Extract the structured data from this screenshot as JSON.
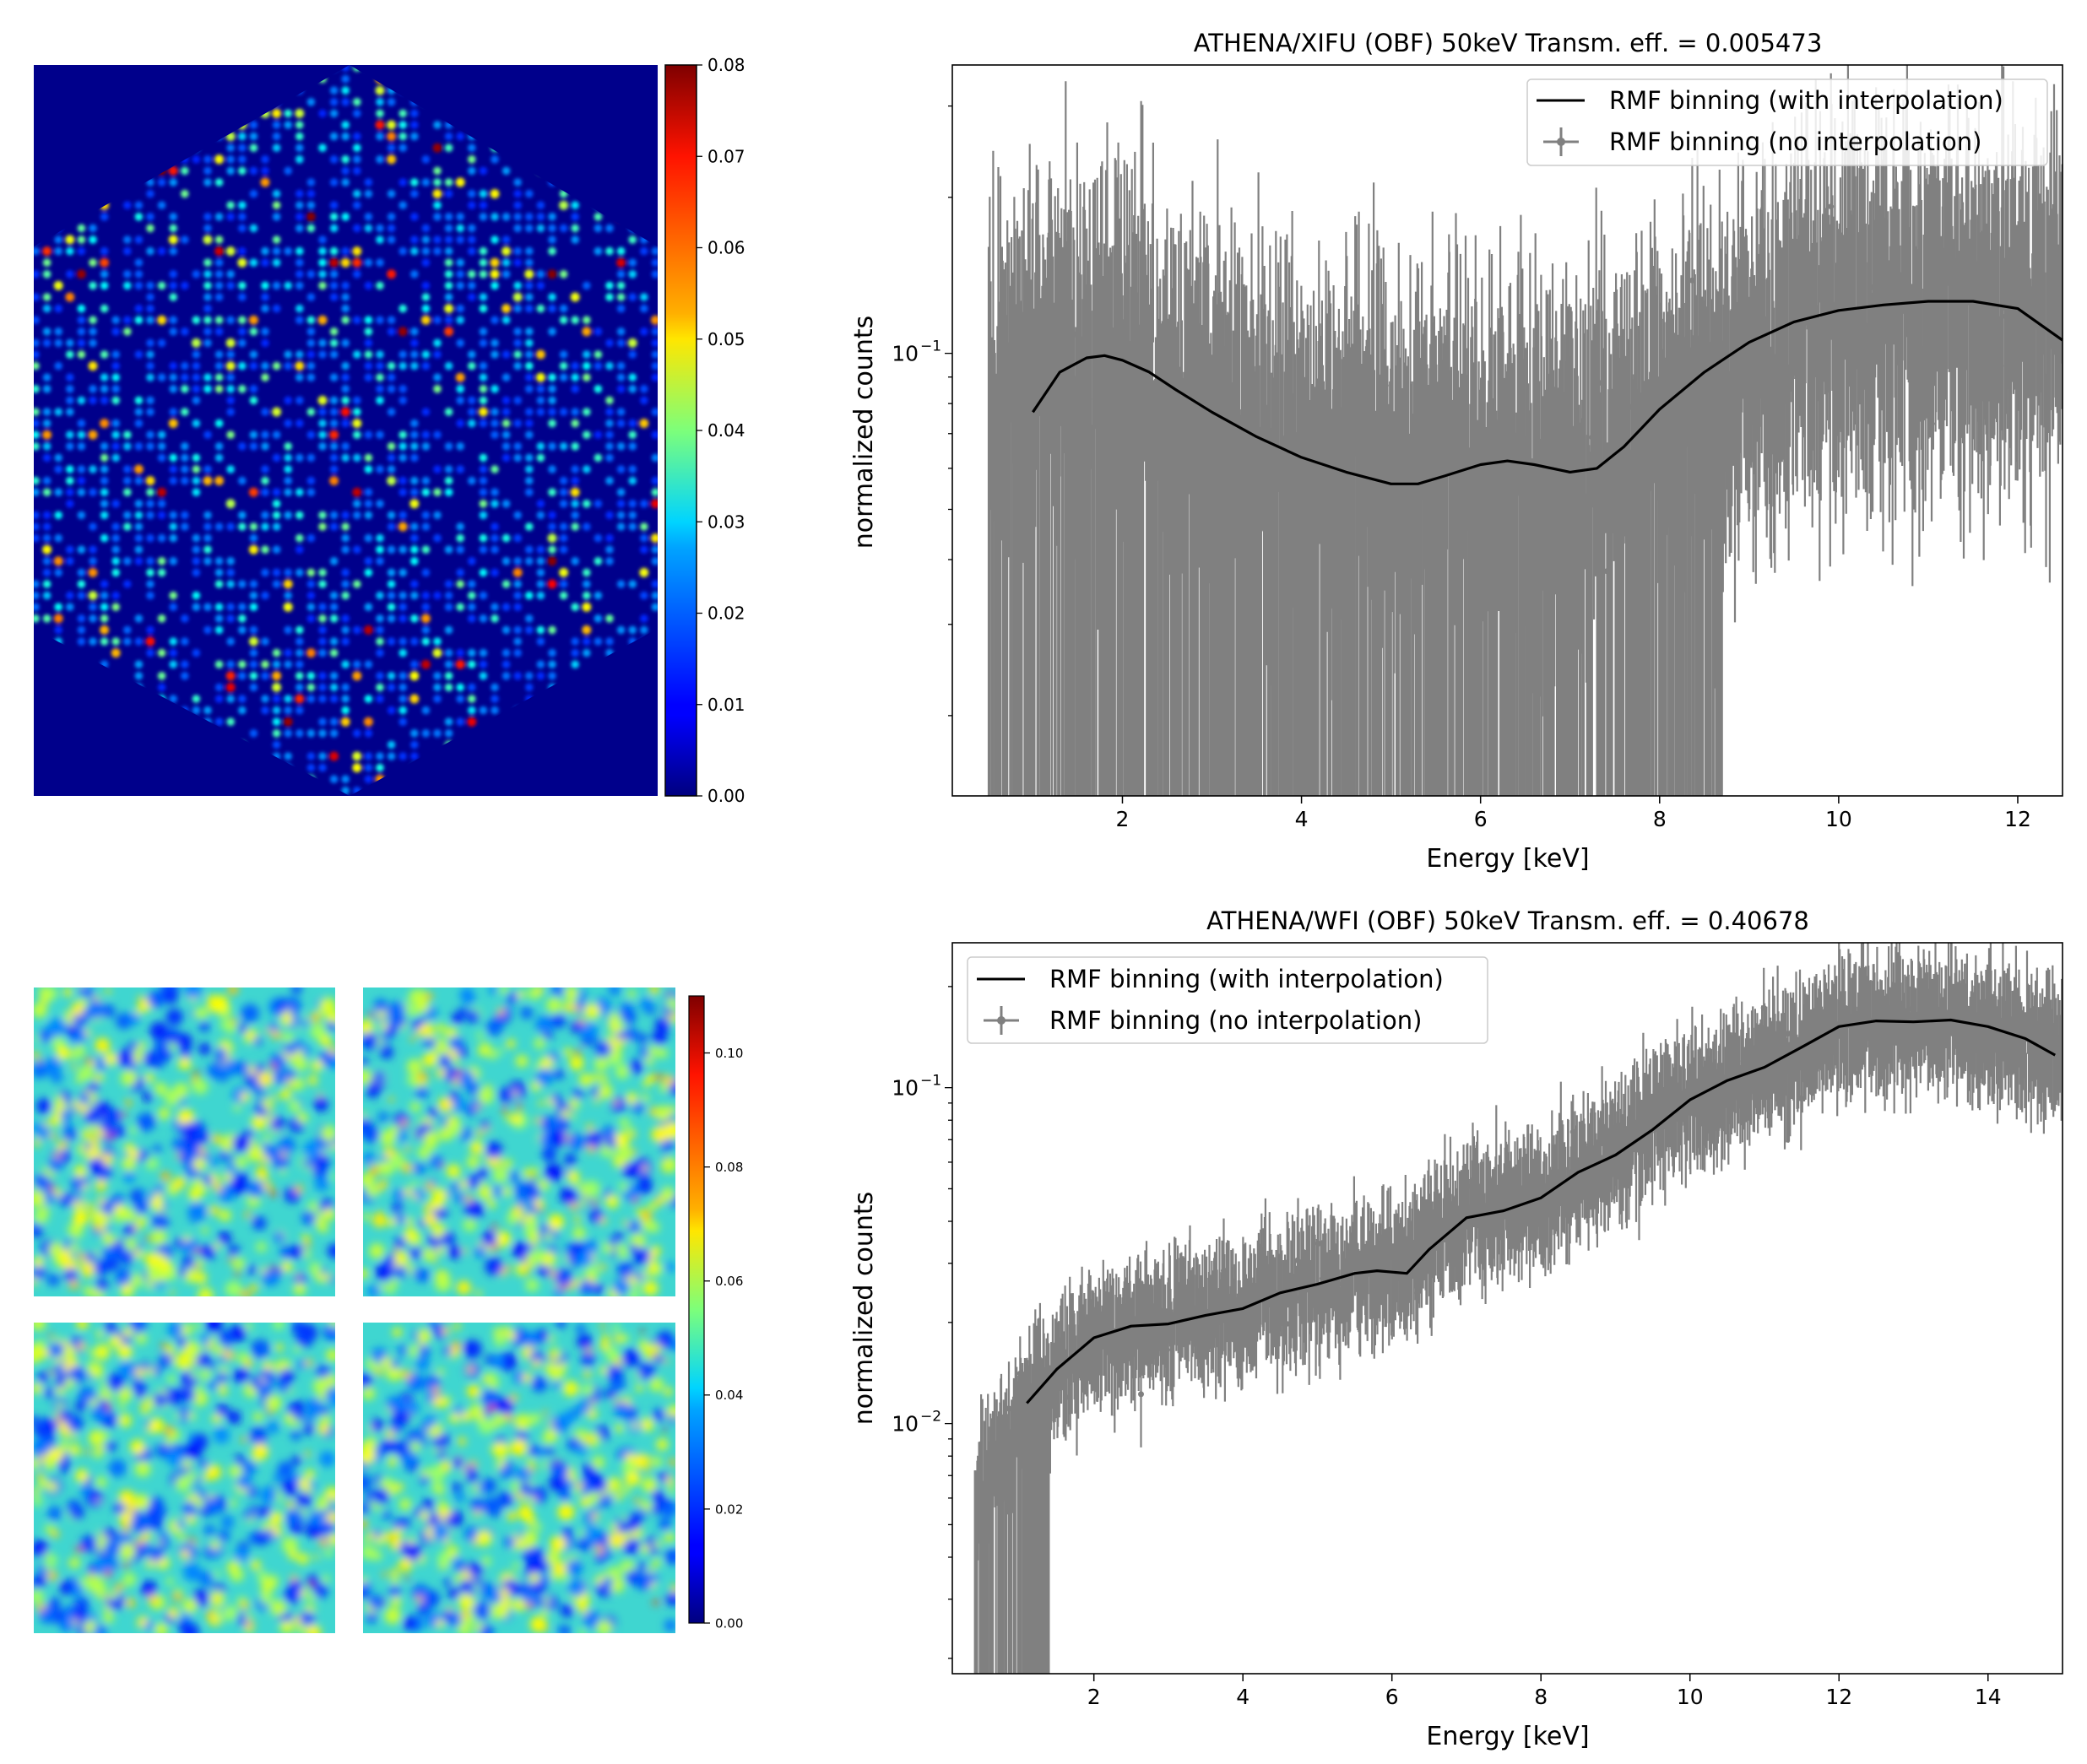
{
  "chart_data": [
    {
      "type": "heatmap",
      "name": "xifu-detector-map",
      "shape": "hexagon",
      "colormap": "jet",
      "colorbar": {
        "ticks": [
          "0.00",
          "0.01",
          "0.02",
          "0.03",
          "0.04",
          "0.05",
          "0.06",
          "0.07",
          "0.08"
        ],
        "range": [
          0,
          0.08
        ]
      }
    },
    {
      "type": "line",
      "name": "xifu-spectrum",
      "title": "ATHENA/XIFU (OBF) 50keV Transm. eff. = 0.005473",
      "xlabel": "Energy [keV]",
      "ylabel": "normalized counts",
      "xlim": [
        0.1,
        12.5
      ],
      "ylim": [
        0.014,
        0.36
      ],
      "yscale": "log",
      "xticks": [
        {
          "value": 2,
          "label": "2"
        },
        {
          "value": 4,
          "label": "4"
        },
        {
          "value": 6,
          "label": "6"
        },
        {
          "value": 8,
          "label": "8"
        },
        {
          "value": 10,
          "label": "10"
        },
        {
          "value": 12,
          "label": "12"
        }
      ],
      "yticks": [
        {
          "value": 0.1,
          "base": "10",
          "exp": "−1"
        }
      ],
      "legend": {
        "placement": "top-right",
        "entries": [
          "RMF binning (with interpolation)",
          "RMF binning (no interpolation)"
        ]
      },
      "series": [
        {
          "name": "RMF binning (with interpolation)",
          "color": "#000000",
          "x": [
            1.0,
            1.3,
            1.6,
            1.8,
            2.0,
            2.3,
            2.6,
            3.0,
            3.5,
            4.0,
            4.5,
            5.0,
            5.3,
            5.6,
            6.0,
            6.3,
            6.6,
            7.0,
            7.3,
            7.6,
            8.0,
            8.5,
            9.0,
            9.5,
            10.0,
            10.5,
            11.0,
            11.5,
            12.0,
            12.5
          ],
          "y": [
            0.077,
            0.092,
            0.098,
            0.099,
            0.097,
            0.092,
            0.085,
            0.077,
            0.069,
            0.063,
            0.059,
            0.056,
            0.056,
            0.058,
            0.061,
            0.062,
            0.061,
            0.059,
            0.06,
            0.066,
            0.078,
            0.092,
            0.105,
            0.115,
            0.121,
            0.124,
            0.126,
            0.126,
            0.122,
            0.106
          ]
        },
        {
          "name": "RMF binning (no interpolation)",
          "color": "#808080",
          "x_range": [
            0.5,
            12.5
          ],
          "trend": [
            [
              0.5,
              0.085
            ],
            [
              2,
              0.095
            ],
            [
              4,
              0.063
            ],
            [
              6,
              0.059
            ],
            [
              7.5,
              0.062
            ],
            [
              8.7,
              0.088
            ],
            [
              10,
              0.118
            ],
            [
              12.5,
              0.126
            ]
          ],
          "noise_frac": 0.55,
          "lower_bound_until_keV": 8.7
        }
      ]
    },
    {
      "type": "heatmap",
      "name": "wfi-detector-map",
      "shape": "four-quadrants",
      "colormap": "jet",
      "colorbar": {
        "ticks": [
          "0.00",
          "0.02",
          "0.04",
          "0.06",
          "0.08",
          "0.10"
        ],
        "range": [
          0,
          0.11
        ]
      }
    },
    {
      "type": "line",
      "name": "wfi-spectrum",
      "title": "ATHENA/WFI (OBF) 50keV Transm. eff. = 0.40678",
      "xlabel": "Energy [keV]",
      "ylabel": "normalized counts",
      "xlim": [
        0.1,
        15.0
      ],
      "ylim": [
        0.0018,
        0.27
      ],
      "yscale": "log",
      "xticks": [
        {
          "value": 2,
          "label": "2"
        },
        {
          "value": 4,
          "label": "4"
        },
        {
          "value": 6,
          "label": "6"
        },
        {
          "value": 8,
          "label": "8"
        },
        {
          "value": 10,
          "label": "10"
        },
        {
          "value": 12,
          "label": "12"
        },
        {
          "value": 14,
          "label": "14"
        }
      ],
      "yticks": [
        {
          "value": 0.1,
          "base": "10",
          "exp": "−1"
        },
        {
          "value": 0.01,
          "base": "10",
          "exp": "−2"
        }
      ],
      "legend": {
        "placement": "top-left",
        "entries": [
          "RMF binning (with interpolation)",
          "RMF binning (no interpolation)"
        ]
      },
      "series": [
        {
          "name": "RMF binning (with interpolation)",
          "color": "#000000",
          "x": [
            1.1,
            1.5,
            2.0,
            2.5,
            3.0,
            3.5,
            4.0,
            4.5,
            5.0,
            5.5,
            5.8,
            6.2,
            6.5,
            7.0,
            7.5,
            8.0,
            8.5,
            9.0,
            9.5,
            10.0,
            10.5,
            11.0,
            11.5,
            12.0,
            12.5,
            13.0,
            13.5,
            14.0,
            14.5,
            14.9
          ],
          "y": [
            0.0115,
            0.0145,
            0.018,
            0.0195,
            0.0198,
            0.021,
            0.022,
            0.0245,
            0.026,
            0.028,
            0.0285,
            0.028,
            0.033,
            0.041,
            0.043,
            0.047,
            0.056,
            0.063,
            0.075,
            0.092,
            0.105,
            0.115,
            0.132,
            0.152,
            0.158,
            0.157,
            0.159,
            0.152,
            0.14,
            0.125
          ]
        },
        {
          "name": "RMF binning (no interpolation)",
          "color": "#808080",
          "x_range": [
            0.4,
            15.0
          ],
          "trend": [
            [
              0.4,
              0.006
            ],
            [
              0.8,
              0.009
            ],
            [
              1.1,
              0.0115
            ],
            [
              2,
              0.018
            ],
            [
              3,
              0.0198
            ],
            [
              4,
              0.022
            ],
            [
              5,
              0.026
            ],
            [
              6,
              0.0285
            ],
            [
              7,
              0.041
            ],
            [
              8,
              0.047
            ],
            [
              9,
              0.063
            ],
            [
              10,
              0.092
            ],
            [
              11,
              0.115
            ],
            [
              12,
              0.152
            ],
            [
              13.5,
              0.159
            ],
            [
              15,
              0.125
            ]
          ],
          "noise_frac": 0.3,
          "lower_bound_until_keV": 1.4
        }
      ]
    }
  ]
}
